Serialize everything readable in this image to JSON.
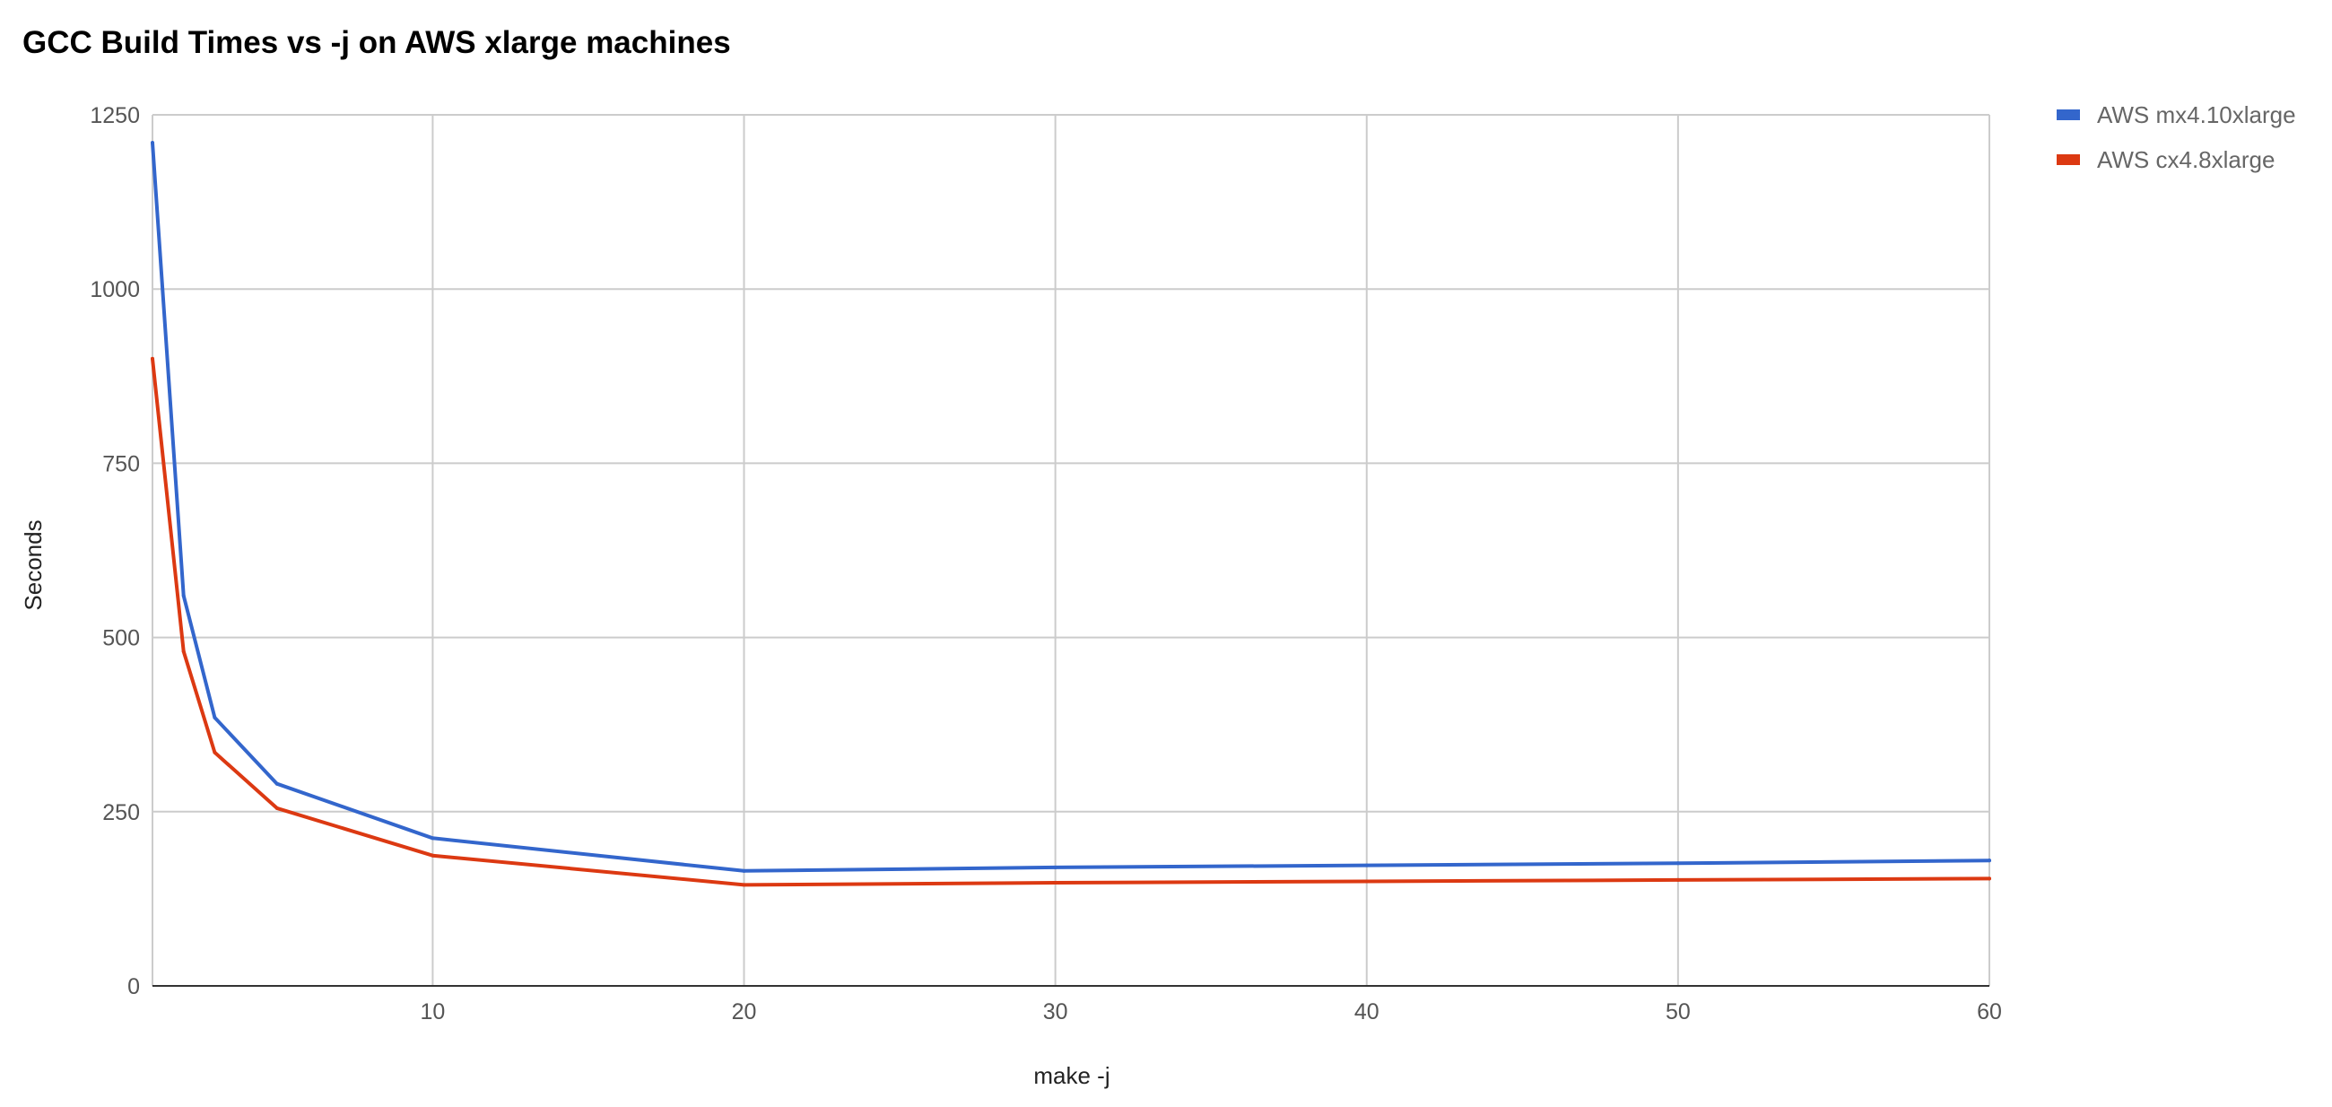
{
  "chart_data": {
    "type": "line",
    "title": "GCC Build Times vs -j on AWS xlarge machines",
    "xlabel": "make -j",
    "ylabel": "Seconds",
    "xlim": [
      1,
      60
    ],
    "ylim": [
      0,
      1250
    ],
    "x_ticks": [
      10,
      20,
      30,
      40,
      50,
      60
    ],
    "y_ticks": [
      0,
      250,
      500,
      750,
      1000,
      1250
    ],
    "grid": true,
    "legend_position": "right",
    "series": [
      {
        "name": "AWS mx4.10xlarge",
        "color": "#3366cc",
        "points": [
          [
            1,
            1210
          ],
          [
            2,
            560
          ],
          [
            3,
            385
          ],
          [
            5,
            290
          ],
          [
            10,
            212
          ],
          [
            20,
            165
          ],
          [
            30,
            170
          ],
          [
            40,
            173
          ],
          [
            50,
            176
          ],
          [
            60,
            180
          ]
        ]
      },
      {
        "name": "AWS cx4.8xlarge",
        "color": "#dc3912",
        "points": [
          [
            1,
            900
          ],
          [
            2,
            480
          ],
          [
            3,
            335
          ],
          [
            5,
            255
          ],
          [
            10,
            187
          ],
          [
            20,
            145
          ],
          [
            30,
            148
          ],
          [
            40,
            150
          ],
          [
            50,
            152
          ],
          [
            60,
            154
          ]
        ]
      }
    ]
  }
}
